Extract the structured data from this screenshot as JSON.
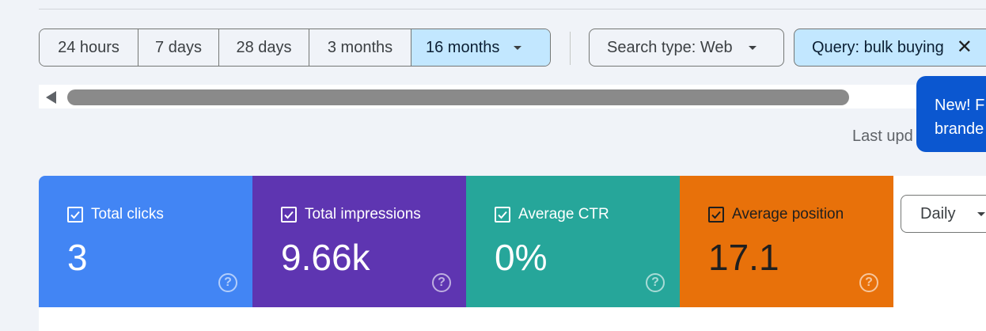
{
  "date_range": {
    "options": [
      "24 hours",
      "7 days",
      "28 days",
      "3 months",
      "16 months"
    ],
    "selected": "16 months"
  },
  "filters": {
    "search_type": "Search type: Web",
    "query": "Query: bulk buying"
  },
  "last_updated": "Last upd",
  "tooltip": {
    "line1": "New! F",
    "line2": "brande"
  },
  "metrics": [
    {
      "label": "Total clicks",
      "value": "3",
      "color": "#4285f4"
    },
    {
      "label": "Total impressions",
      "value": "9.66k",
      "color": "#5e35b1"
    },
    {
      "label": "Average CTR",
      "value": "0%",
      "color": "#26a69a"
    },
    {
      "label": "Average position",
      "value": "17.1",
      "color": "#e8710a"
    }
  ],
  "granularity": "Daily",
  "help_glyph": "?"
}
